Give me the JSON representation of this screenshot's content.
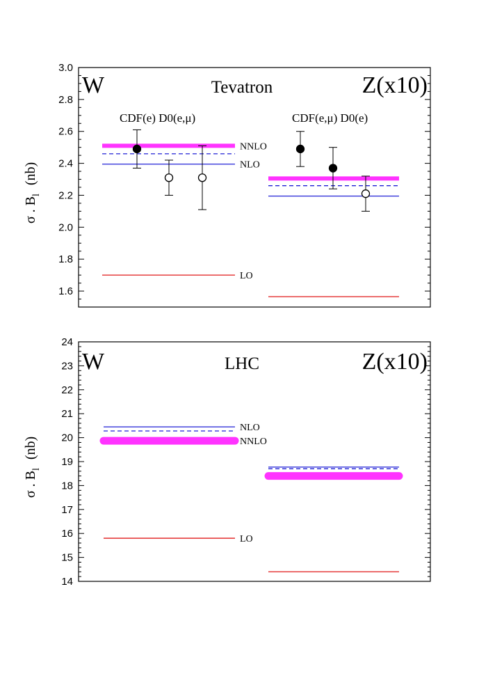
{
  "chart_data": [
    {
      "type": "line",
      "title": "Tevatron",
      "ylabel": "σ . B",
      "ylabel_sub": "l",
      "ylabel_unit": "(nb)",
      "ylim": [
        1.5,
        3.0
      ],
      "yticks": [
        "1.6",
        "1.8",
        "2.0",
        "2.2",
        "2.4",
        "2.6",
        "2.8",
        "3.0"
      ],
      "ytick_values": [
        1.6,
        1.8,
        2.0,
        2.2,
        2.4,
        2.6,
        2.8,
        3.0
      ],
      "groups": [
        {
          "name": "W",
          "predictions": [
            {
              "order": "NNLO",
              "value": 2.51,
              "style": "thick-magenta",
              "label": "NNLO"
            },
            {
              "order": "NNLO-dashed",
              "value": 2.46,
              "style": "dashed-blue",
              "label": ""
            },
            {
              "order": "NLO",
              "value": 2.395,
              "style": "solid-blue",
              "label": "NLO"
            },
            {
              "order": "LO",
              "value": 1.7,
              "style": "solid-red",
              "label": "LO"
            }
          ],
          "experiments_label": "CDF(e)  D0(e,μ)",
          "data_points": [
            {
              "value": 2.49,
              "err_up": 0.12,
              "err_down": 0.12,
              "filled": true
            },
            {
              "value": 2.31,
              "err_up": 0.11,
              "err_down": 0.11,
              "filled": false
            },
            {
              "value": 2.31,
              "err_up": 0.2,
              "err_down": 0.2,
              "filled": false
            }
          ]
        },
        {
          "name": "Z(x10)",
          "predictions": [
            {
              "order": "NNLO",
              "value": 2.305,
              "style": "thick-magenta",
              "label": ""
            },
            {
              "order": "NNLO-dashed",
              "value": 2.26,
              "style": "dashed-blue",
              "label": ""
            },
            {
              "order": "NLO",
              "value": 2.195,
              "style": "solid-blue",
              "label": ""
            },
            {
              "order": "LO",
              "value": 1.565,
              "style": "solid-red",
              "label": ""
            }
          ],
          "experiments_label": "CDF(e,μ)  D0(e)",
          "data_points": [
            {
              "value": 2.49,
              "err_up": 0.11,
              "err_down": 0.11,
              "filled": true
            },
            {
              "value": 2.37,
              "err_up": 0.13,
              "err_down": 0.13,
              "filled": true
            },
            {
              "value": 2.21,
              "err_up": 0.11,
              "err_down": 0.11,
              "filled": false
            }
          ]
        }
      ]
    },
    {
      "type": "line",
      "title": "LHC",
      "ylabel": "σ . B",
      "ylabel_sub": "l",
      "ylabel_unit": "(nb)",
      "ylim": [
        14,
        24
      ],
      "yticks": [
        "14",
        "15",
        "16",
        "17",
        "18",
        "19",
        "20",
        "21",
        "22",
        "23",
        "24"
      ],
      "ytick_values": [
        14,
        15,
        16,
        17,
        18,
        19,
        20,
        21,
        22,
        23,
        24
      ],
      "groups": [
        {
          "name": "W",
          "predictions": [
            {
              "order": "NLO",
              "value": 20.45,
              "style": "solid-blue",
              "label": "NLO"
            },
            {
              "order": "NLO-dashed",
              "value": 20.28,
              "style": "dashed-blue",
              "label": ""
            },
            {
              "order": "NNLO",
              "value": 19.87,
              "style": "band-magenta",
              "label": "NNLO"
            },
            {
              "order": "LO",
              "value": 15.8,
              "style": "solid-red",
              "label": "LO"
            }
          ],
          "experiments_label": "",
          "data_points": []
        },
        {
          "name": "Z(x10)",
          "predictions": [
            {
              "order": "NLO",
              "value": 18.77,
              "style": "solid-blue",
              "label": ""
            },
            {
              "order": "NLO-dashed",
              "value": 18.7,
              "style": "dashed-blue",
              "label": ""
            },
            {
              "order": "NNLO",
              "value": 18.4,
              "style": "band-magenta",
              "label": ""
            },
            {
              "order": "LO",
              "value": 14.4,
              "style": "solid-red",
              "label": ""
            }
          ],
          "experiments_label": "",
          "data_points": []
        }
      ]
    }
  ],
  "colors": {
    "magenta": "#ff33ff",
    "blue": "#1f1fd6",
    "red": "#e01818",
    "black": "#000000"
  }
}
